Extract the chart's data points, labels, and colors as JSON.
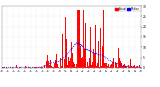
{
  "background_color": "#ffffff",
  "bar_color": "#ff0000",
  "line_color": "#0000ff",
  "n_points": 1440,
  "ylim": [
    0,
    30
  ],
  "yticks": [
    0,
    5,
    10,
    15,
    20,
    25,
    30
  ],
  "legend_labels": [
    "Actual",
    "Median"
  ],
  "legend_colors": [
    "#ff0000",
    "#0000ff"
  ],
  "grid_color": "#cccccc",
  "seed": 42
}
